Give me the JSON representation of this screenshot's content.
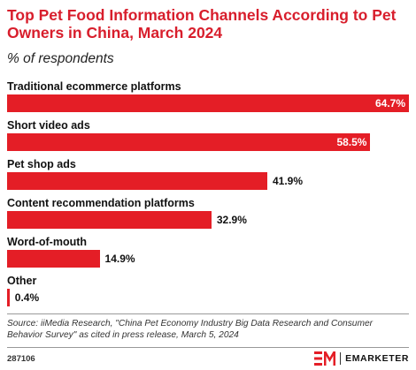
{
  "colors": {
    "bar": "#e41e26",
    "title": "#d81e2c"
  },
  "chart_data": {
    "type": "bar",
    "orientation": "horizontal",
    "title": "Top Pet Food Information Channels According to Pet Owners in China, March 2024",
    "subtitle": "% of respondents",
    "categories": [
      "Traditional ecommerce platforms",
      "Short video ads",
      "Pet shop ads",
      "Content recommendation platforms",
      "Word-of-mouth",
      "Other"
    ],
    "values": [
      64.7,
      58.5,
      41.9,
      32.9,
      14.9,
      0.4
    ],
    "value_labels": [
      "64.7%",
      "58.5%",
      "41.9%",
      "32.9%",
      "14.9%",
      "0.4%"
    ],
    "xlim": [
      0,
      64.7
    ],
    "grid": false
  },
  "footer": {
    "source": "Source: iiMedia Research, \"China Pet Economy Industry Big Data Research and Consumer Behavior Survey\" as cited in press release, March 5, 2024",
    "chart_id": "287106",
    "brand": "EMARKETER"
  }
}
